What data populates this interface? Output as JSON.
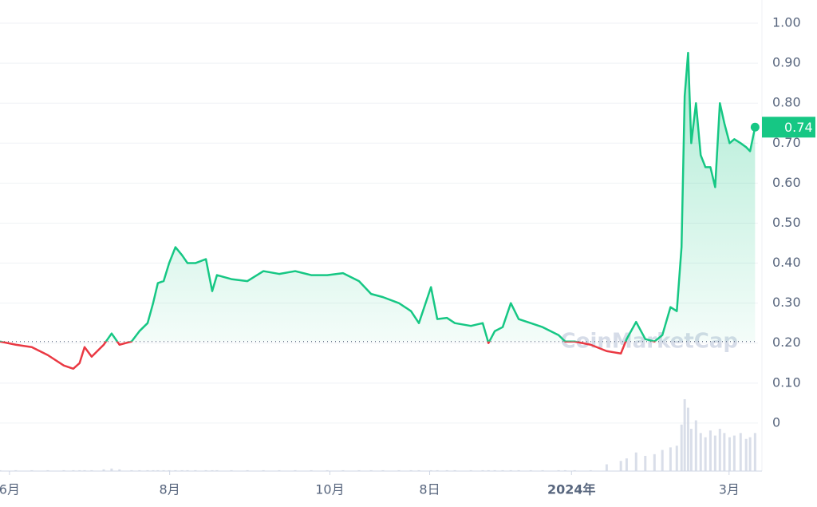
{
  "chart_data": {
    "type": "line",
    "watermark": "CoinMarketCap",
    "up_color": "#16c784",
    "down_color": "#ea3943",
    "baseline": 0.204,
    "grid": true,
    "x": [
      -3.6,
      2.4,
      8.5,
      14.6,
      20.7,
      24.3,
      26.7,
      28.6,
      31.3,
      35.9,
      38.9,
      41.9,
      46.5,
      49.5,
      52.6,
      54.7,
      56.5,
      58.7,
      60.8,
      63.2,
      65.7,
      67.8,
      70.8,
      74.8,
      77.2,
      79,
      84.5,
      90.6,
      96.7,
      102.7,
      108.8,
      114.9,
      121,
      127,
      133.1,
      137.7,
      142.2,
      148.3,
      152.9,
      155.9,
      160.5,
      162.9,
      166.6,
      169.6,
      175.7,
      180.2,
      182.4,
      184.8,
      187.8,
      190.9,
      193.9,
      198.5,
      203,
      209.1,
      211.6,
      215.2,
      221.3,
      227.4,
      232.8,
      235,
      238.6,
      242.1,
      245.6,
      248.6,
      251.7,
      254.1,
      255.9,
      257.1,
      258.4,
      259.6,
      261.4,
      263.2,
      265,
      266.9,
      268.7,
      270.5,
      272.2,
      274.2,
      276,
      278.4,
      280.5,
      282,
      283.9
    ],
    "series": [
      {
        "values": [
          0.204,
          0.196,
          0.19,
          0.17,
          0.144,
          0.136,
          0.15,
          0.19,
          0.166,
          0.196,
          0.224,
          0.196,
          0.204,
          0.23,
          0.25,
          0.3,
          0.35,
          0.355,
          0.4,
          0.44,
          0.42,
          0.4,
          0.4,
          0.41,
          0.33,
          0.37,
          0.36,
          0.355,
          0.38,
          0.373,
          0.38,
          0.37,
          0.37,
          0.375,
          0.355,
          0.323,
          0.315,
          0.3,
          0.28,
          0.25,
          0.34,
          0.26,
          0.263,
          0.25,
          0.243,
          0.25,
          0.2,
          0.23,
          0.24,
          0.3,
          0.26,
          0.25,
          0.24,
          0.22,
          0.204,
          0.204,
          0.196,
          0.18,
          0.174,
          0.21,
          0.253,
          0.21,
          0.204,
          0.22,
          0.29,
          0.28,
          0.44,
          0.818,
          0.926,
          0.7,
          0.8,
          0.67,
          0.64,
          0.64,
          0.59,
          0.8,
          0.75,
          0.7,
          0.71,
          0.7,
          0.69,
          0.68,
          0.74
        ]
      }
    ],
    "volume": [
      1,
      1,
      1,
      1,
      1,
      1,
      1,
      1,
      1,
      2,
      3,
      2,
      1,
      1,
      1,
      1,
      1,
      1,
      1,
      1,
      1,
      1,
      1,
      1,
      1,
      1,
      1,
      1,
      1,
      1,
      1,
      1,
      1,
      1,
      1,
      1,
      1,
      1,
      1,
      1,
      1,
      1,
      1,
      1,
      1,
      1,
      1,
      1,
      1,
      1,
      1,
      1,
      1,
      1,
      1,
      1,
      1,
      8,
      12,
      15,
      22,
      18,
      20,
      25,
      28,
      30,
      55,
      85,
      75,
      50,
      60,
      45,
      40,
      48,
      42,
      50,
      45,
      40,
      42,
      45,
      38,
      40,
      45
    ],
    "xlim": [
      -3.6,
      285
    ],
    "ylim": [
      -0.12,
      1.058
    ],
    "xticks": [
      {
        "value": 0,
        "label": "6月"
      },
      {
        "value": 61,
        "label": "8月"
      },
      {
        "value": 122,
        "label": "10月"
      },
      {
        "value": 160,
        "label": "8日"
      },
      {
        "value": 214,
        "label": "2024年"
      },
      {
        "value": 274,
        "label": "3月"
      }
    ],
    "yticks": [
      0,
      {
        "value": 0.1,
        "label": "0.10"
      },
      {
        "value": 0.2,
        "label": "0.20"
      },
      {
        "value": 0.3,
        "label": "0.30"
      },
      {
        "value": 0.4,
        "label": "0.40"
      },
      {
        "value": 0.5,
        "label": "0.50"
      },
      {
        "value": 0.6,
        "label": "0.60"
      },
      {
        "value": 0.7,
        "label": "0.70"
      },
      {
        "value": 0.8,
        "label": "0.80"
      },
      {
        "value": 0.9,
        "label": "0.90"
      },
      {
        "value": 1,
        "label": "1.00"
      }
    ]
  }
}
